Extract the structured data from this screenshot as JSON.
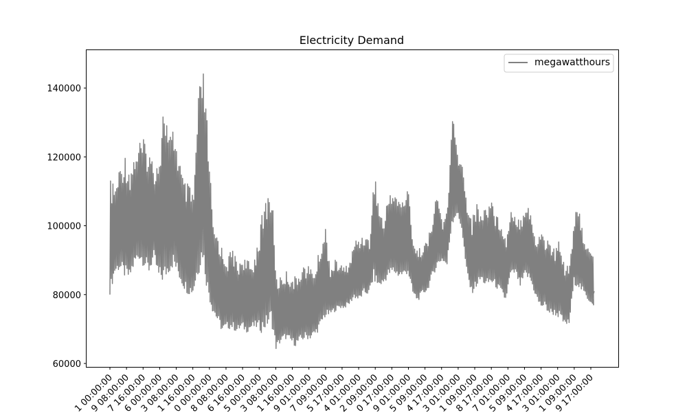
{
  "chart_data": {
    "type": "line",
    "title": "Electricity Demand",
    "xlabel": "",
    "ylabel": "",
    "ylim": [
      59000,
      151000
    ],
    "y_ticks": [
      60000,
      80000,
      100000,
      120000,
      140000
    ],
    "y_tick_labels": [
      "60000",
      "80000",
      "100000",
      "120000",
      "140000"
    ],
    "x_tick_labels": [
      "1 00:00:00",
      "9 08:00:00",
      "7 16:00:00",
      "6 00:00:00",
      "3 08:00:00",
      "1 16:00:00",
      "0 00:00:00",
      "8 08:00:00",
      "6 16:00:00",
      "5 00:00:00",
      "3 08:00:00",
      "1 16:00:00",
      "9 01:00:00",
      "7 09:00:00",
      "5 17:00:00",
      "4 01:00:00",
      "2 09:00:00",
      "0 17:00:00",
      "9 01:00:00",
      "5 09:00:00",
      "4 17:00:00",
      "3 01:00:00",
      "1 09:00:00",
      "8 17:00:00",
      "7 01:00:00",
      "5 09:00:00",
      "4 17:00:00",
      "3 01:00:00",
      "1 09:00:00",
      "9 17:00:00"
    ],
    "grid": false,
    "legend_position": "top-right",
    "series": [
      {
        "name": "megawatthours",
        "color": "#808080",
        "envelope": [
          [
            113000,
            80000
          ],
          [
            112000,
            86000
          ],
          [
            118000,
            87000
          ],
          [
            121000,
            85000
          ],
          [
            117000,
            84000
          ],
          [
            122000,
            88000
          ],
          [
            125000,
            90000
          ],
          [
            125000,
            88000
          ],
          [
            122000,
            86000
          ],
          [
            118000,
            90000
          ],
          [
            122000,
            84000
          ],
          [
            138000,
            83000
          ],
          [
            126000,
            86000
          ],
          [
            129000,
            88000
          ],
          [
            121000,
            85000
          ],
          [
            113000,
            82000
          ],
          [
            112000,
            80000
          ],
          [
            110000,
            80000
          ],
          [
            139000,
            85000
          ],
          [
            146000,
            90000
          ],
          [
            126000,
            80000
          ],
          [
            100000,
            75000
          ],
          [
            98000,
            72000
          ],
          [
            93000,
            69000
          ],
          [
            91000,
            70000
          ],
          [
            94000,
            70000
          ],
          [
            89000,
            69000
          ],
          [
            92000,
            70000
          ],
          [
            90000,
            69000
          ],
          [
            89000,
            70000
          ],
          [
            95000,
            70000
          ],
          [
            103000,
            69000
          ],
          [
            110000,
            70000
          ],
          [
            111000,
            72000
          ],
          [
            85000,
            64000
          ],
          [
            86000,
            66000
          ],
          [
            87000,
            67000
          ],
          [
            86000,
            66000
          ],
          [
            85000,
            65000
          ],
          [
            89000,
            66000
          ],
          [
            89000,
            67000
          ],
          [
            88000,
            67000
          ],
          [
            88000,
            68000
          ],
          [
            95000,
            70000
          ],
          [
            100000,
            73000
          ],
          [
            88000,
            74000
          ],
          [
            90000,
            75000
          ],
          [
            89000,
            76000
          ],
          [
            88000,
            76000
          ],
          [
            90000,
            77000
          ],
          [
            96000,
            79000
          ],
          [
            97000,
            78000
          ],
          [
            98000,
            80000
          ],
          [
            96000,
            80000
          ],
          [
            116000,
            84000
          ],
          [
            106000,
            82000
          ],
          [
            101000,
            83000
          ],
          [
            111000,
            85000
          ],
          [
            111000,
            86000
          ],
          [
            108000,
            85000
          ],
          [
            109000,
            85000
          ],
          [
            111000,
            86000
          ],
          [
            96000,
            80000
          ],
          [
            93000,
            78000
          ],
          [
            95000,
            80000
          ],
          [
            96000,
            81000
          ],
          [
            104000,
            85000
          ],
          [
            110000,
            88000
          ],
          [
            100000,
            90000
          ],
          [
            107000,
            88000
          ],
          [
            133000,
            100000
          ],
          [
            122000,
            103000
          ],
          [
            118000,
            99000
          ],
          [
            108000,
            86000
          ],
          [
            102000,
            80000
          ],
          [
            107000,
            82000
          ],
          [
            104000,
            84000
          ],
          [
            107000,
            82000
          ],
          [
            109000,
            83000
          ],
          [
            103000,
            82000
          ],
          [
            103000,
            80000
          ],
          [
            96000,
            78000
          ],
          [
            107000,
            85000
          ],
          [
            103000,
            86000
          ],
          [
            103000,
            82000
          ],
          [
            108000,
            85000
          ],
          [
            105000,
            84000
          ],
          [
            95000,
            80000
          ],
          [
            100000,
            76000
          ],
          [
            97000,
            76000
          ],
          [
            96000,
            74000
          ],
          [
            93000,
            74000
          ],
          [
            97000,
            73000
          ],
          [
            89000,
            71000
          ],
          [
            90000,
            71000
          ],
          [
            104000,
            83000
          ],
          [
            104000,
            82000
          ],
          [
            97000,
            80000
          ],
          [
            93000,
            78000
          ],
          [
            91000,
            77000
          ]
        ]
      }
    ]
  }
}
